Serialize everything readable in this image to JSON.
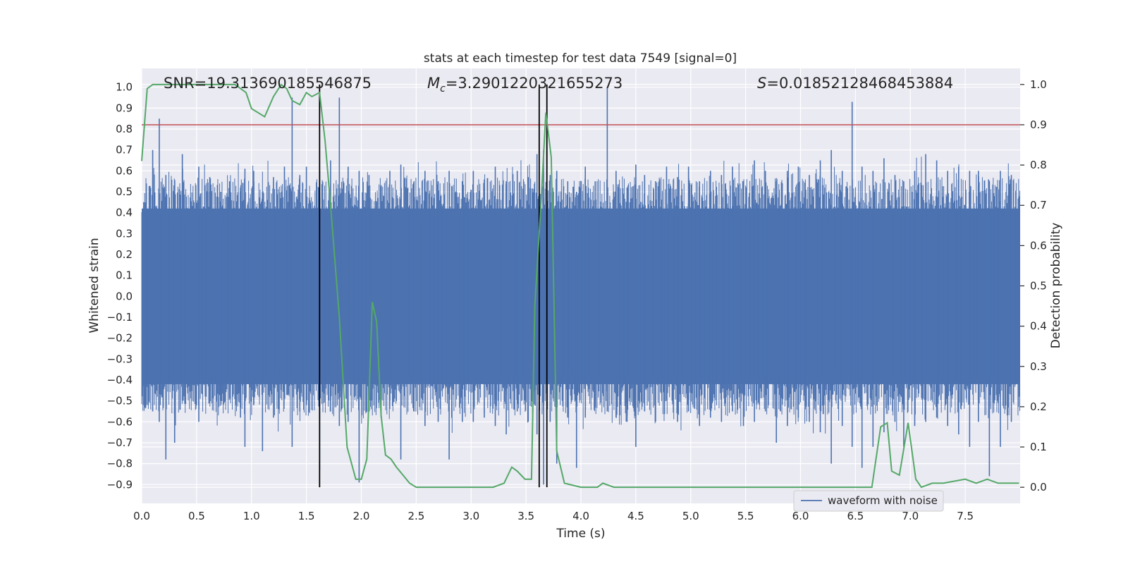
{
  "chart_data": {
    "type": "line",
    "title": "stats at each timestep for test data 7549 [signal=0]",
    "xlabel": "Time (s)",
    "ylabel": "Whitened strain",
    "ylabel_right": "Detection probability",
    "xlim": [
      0.0,
      8.0
    ],
    "ylim": [
      -0.99,
      1.09
    ],
    "ylim_right": [
      -0.04,
      1.04
    ],
    "x_ticks": [
      "0.0",
      "0.5",
      "1.0",
      "1.5",
      "2.0",
      "2.5",
      "3.0",
      "3.5",
      "4.0",
      "4.5",
      "5.0",
      "5.5",
      "6.0",
      "6.5",
      "7.0",
      "7.5"
    ],
    "y_ticks": [
      "−0.9",
      "−0.8",
      "−0.7",
      "−0.6",
      "−0.5",
      "−0.4",
      "−0.3",
      "−0.2",
      "−0.1",
      "0.0",
      "0.1",
      "0.2",
      "0.3",
      "0.4",
      "0.5",
      "0.6",
      "0.7",
      "0.8",
      "0.9",
      "1.0"
    ],
    "y_ticks_right": [
      "0.0",
      "0.1",
      "0.2",
      "0.3",
      "0.4",
      "0.5",
      "0.6",
      "0.7",
      "0.8",
      "0.9",
      "1.0"
    ],
    "grid": true,
    "legend_position": "lower-right",
    "annotations": {
      "snr": "SNR=19.313690185546875",
      "mc_symbol": "M",
      "mc_sub": "c",
      "mc_value": "=3.2901220321655273",
      "s_symbol": "S",
      "s_value": "=0.01852128468453884"
    },
    "threshold": {
      "value": 0.9,
      "axis": "right",
      "color": "#c44e52"
    },
    "vlines": [
      1.62,
      3.62,
      3.69
    ],
    "waveform": {
      "name": "waveform with noise",
      "color": "#4c72b0",
      "core_half_amplitude": 0.42,
      "spikes": [
        {
          "t": 0.02,
          "top": 0.45,
          "bottom": -0.52
        },
        {
          "t": 0.1,
          "top": 0.7,
          "bottom": -0.55
        },
        {
          "t": 0.16,
          "top": 0.85,
          "bottom": -0.6
        },
        {
          "t": 0.22,
          "top": 0.58,
          "bottom": -0.78
        },
        {
          "t": 0.3,
          "top": 0.5,
          "bottom": -0.7
        },
        {
          "t": 0.37,
          "top": 0.68,
          "bottom": -0.5
        },
        {
          "t": 0.52,
          "top": 0.62,
          "bottom": -0.6
        },
        {
          "t": 0.62,
          "top": 0.57,
          "bottom": -0.45
        },
        {
          "t": 0.72,
          "top": 0.5,
          "bottom": -0.5
        },
        {
          "t": 0.8,
          "top": 0.55,
          "bottom": -0.48
        },
        {
          "t": 0.9,
          "top": 0.52,
          "bottom": -0.58
        },
        {
          "t": 0.94,
          "top": 0.61,
          "bottom": -0.72
        },
        {
          "t": 1.02,
          "top": 0.6,
          "bottom": -0.52
        },
        {
          "t": 1.1,
          "top": 0.5,
          "bottom": -0.74
        },
        {
          "t": 1.2,
          "top": 0.57,
          "bottom": -0.58
        },
        {
          "t": 1.3,
          "top": 0.62,
          "bottom": -0.48
        },
        {
          "t": 1.37,
          "top": 0.95,
          "bottom": -0.72
        },
        {
          "t": 1.44,
          "top": 0.58,
          "bottom": -0.55
        },
        {
          "t": 1.5,
          "top": 0.62,
          "bottom": -0.52
        },
        {
          "t": 1.62,
          "top": 0.6,
          "bottom": -0.83
        },
        {
          "t": 1.72,
          "top": 0.65,
          "bottom": -0.5
        },
        {
          "t": 1.8,
          "top": 0.95,
          "bottom": -0.62
        },
        {
          "t": 1.88,
          "top": 0.62,
          "bottom": -0.6
        },
        {
          "t": 1.98,
          "top": 0.6,
          "bottom": -0.89
        },
        {
          "t": 2.07,
          "top": 0.58,
          "bottom": -0.55
        },
        {
          "t": 2.18,
          "top": 0.52,
          "bottom": -0.58
        },
        {
          "t": 2.26,
          "top": 0.6,
          "bottom": -0.5
        },
        {
          "t": 2.36,
          "top": 0.63,
          "bottom": -0.78
        },
        {
          "t": 2.48,
          "top": 0.55,
          "bottom": -0.55
        },
        {
          "t": 2.58,
          "top": 0.6,
          "bottom": -0.62
        },
        {
          "t": 2.7,
          "top": 0.55,
          "bottom": -0.6
        },
        {
          "t": 2.8,
          "top": 0.6,
          "bottom": -0.78
        },
        {
          "t": 2.92,
          "top": 0.55,
          "bottom": -0.6
        },
        {
          "t": 3.02,
          "top": 0.6,
          "bottom": -0.6
        },
        {
          "t": 3.12,
          "top": 0.52,
          "bottom": -0.58
        },
        {
          "t": 3.22,
          "top": 0.62,
          "bottom": -0.62
        },
        {
          "t": 3.32,
          "top": 0.55,
          "bottom": -0.66
        },
        {
          "t": 3.42,
          "top": 0.6,
          "bottom": -0.55
        },
        {
          "t": 3.52,
          "top": 0.57,
          "bottom": -0.6
        },
        {
          "t": 3.6,
          "top": 0.68,
          "bottom": -0.66
        },
        {
          "t": 3.66,
          "top": 0.7,
          "bottom": -0.9
        },
        {
          "t": 3.72,
          "top": 0.58,
          "bottom": -0.6
        },
        {
          "t": 3.78,
          "top": 0.6,
          "bottom": -0.8
        },
        {
          "t": 3.88,
          "top": 0.55,
          "bottom": -0.58
        },
        {
          "t": 3.96,
          "top": 0.5,
          "bottom": -0.82
        },
        {
          "t": 4.04,
          "top": 0.62,
          "bottom": -0.58
        },
        {
          "t": 4.13,
          "top": 0.55,
          "bottom": -0.5
        },
        {
          "t": 4.24,
          "top": 1.0,
          "bottom": -0.55
        },
        {
          "t": 4.32,
          "top": 0.6,
          "bottom": -0.58
        },
        {
          "t": 4.42,
          "top": 0.52,
          "bottom": -0.6
        },
        {
          "t": 4.5,
          "top": 0.63,
          "bottom": -0.72
        },
        {
          "t": 4.58,
          "top": 0.58,
          "bottom": -0.55
        },
        {
          "t": 4.68,
          "top": 0.55,
          "bottom": -0.6
        },
        {
          "t": 4.78,
          "top": 0.62,
          "bottom": -0.5
        },
        {
          "t": 4.88,
          "top": 0.57,
          "bottom": -0.6
        },
        {
          "t": 4.98,
          "top": 0.62,
          "bottom": -0.55
        },
        {
          "t": 5.08,
          "top": 0.55,
          "bottom": -0.62
        },
        {
          "t": 5.18,
          "top": 0.6,
          "bottom": -0.58
        },
        {
          "t": 5.28,
          "top": 0.58,
          "bottom": -0.6
        },
        {
          "t": 5.38,
          "top": 0.62,
          "bottom": -0.55
        },
        {
          "t": 5.48,
          "top": 0.55,
          "bottom": -0.62
        },
        {
          "t": 5.58,
          "top": 0.65,
          "bottom": -0.6
        },
        {
          "t": 5.68,
          "top": 0.6,
          "bottom": -0.55
        },
        {
          "t": 5.78,
          "top": 0.55,
          "bottom": -0.7
        },
        {
          "t": 5.88,
          "top": 0.6,
          "bottom": -0.62
        },
        {
          "t": 5.98,
          "top": 0.62,
          "bottom": -0.58
        },
        {
          "t": 6.08,
          "top": 0.58,
          "bottom": -0.6
        },
        {
          "t": 6.18,
          "top": 0.65,
          "bottom": -0.65
        },
        {
          "t": 6.28,
          "top": 0.7,
          "bottom": -0.8
        },
        {
          "t": 6.38,
          "top": 0.6,
          "bottom": -0.62
        },
        {
          "t": 6.47,
          "top": 0.93,
          "bottom": -0.72
        },
        {
          "t": 6.56,
          "top": 0.62,
          "bottom": -0.82
        },
        {
          "t": 6.66,
          "top": 0.6,
          "bottom": -0.72
        },
        {
          "t": 6.76,
          "top": 0.66,
          "bottom": -0.65
        },
        {
          "t": 6.86,
          "top": 0.58,
          "bottom": -0.6
        },
        {
          "t": 6.94,
          "top": 0.55,
          "bottom": -0.72
        },
        {
          "t": 7.04,
          "top": 0.6,
          "bottom": -0.62
        },
        {
          "t": 7.14,
          "top": 0.68,
          "bottom": -0.6
        },
        {
          "t": 7.24,
          "top": 0.65,
          "bottom": -0.58
        },
        {
          "t": 7.34,
          "top": 0.6,
          "bottom": -0.62
        },
        {
          "t": 7.44,
          "top": 0.62,
          "bottom": -0.66
        },
        {
          "t": 7.54,
          "top": 0.6,
          "bottom": -0.72
        },
        {
          "t": 7.62,
          "top": 0.6,
          "bottom": -0.6
        },
        {
          "t": 7.72,
          "top": 0.55,
          "bottom": -0.86
        },
        {
          "t": 7.82,
          "top": 0.6,
          "bottom": -0.72
        },
        {
          "t": 7.92,
          "top": 0.58,
          "bottom": -0.6
        }
      ]
    },
    "probability": {
      "color": "#55a868",
      "t": [
        0.0,
        0.05,
        0.1,
        0.2,
        0.3,
        0.4,
        0.5,
        0.6,
        0.7,
        0.8,
        0.85,
        0.9,
        0.95,
        1.0,
        1.12,
        1.2,
        1.27,
        1.32,
        1.37,
        1.44,
        1.5,
        1.55,
        1.62,
        1.67,
        1.72,
        1.8,
        1.87,
        1.95,
        2.0,
        2.05,
        2.1,
        2.14,
        2.18,
        2.22,
        2.27,
        2.32,
        2.38,
        2.44,
        2.5,
        2.6,
        2.8,
        3.0,
        3.2,
        3.3,
        3.37,
        3.42,
        3.49,
        3.55,
        3.58,
        3.64,
        3.68,
        3.73,
        3.78,
        3.85,
        4.0,
        4.15,
        4.2,
        4.3,
        4.5,
        5.0,
        5.5,
        5.7,
        5.8,
        6.0,
        6.3,
        6.6,
        6.65,
        6.73,
        6.79,
        6.83,
        6.9,
        6.98,
        7.05,
        7.1,
        7.2,
        7.3,
        7.5,
        7.6,
        7.7,
        7.8,
        7.99
      ],
      "p": [
        0.81,
        0.99,
        1.0,
        1.0,
        1.0,
        1.0,
        1.0,
        1.0,
        1.0,
        1.0,
        1.0,
        0.99,
        0.98,
        0.94,
        0.92,
        0.97,
        1.0,
        0.99,
        0.96,
        0.95,
        0.98,
        0.97,
        0.98,
        0.86,
        0.7,
        0.42,
        0.1,
        0.02,
        0.02,
        0.07,
        0.46,
        0.41,
        0.18,
        0.08,
        0.07,
        0.05,
        0.03,
        0.01,
        0.0,
        0.0,
        0.0,
        0.0,
        0.0,
        0.01,
        0.05,
        0.04,
        0.02,
        0.02,
        0.45,
        0.72,
        0.93,
        0.82,
        0.09,
        0.01,
        0.0,
        0.0,
        0.01,
        0.0,
        0.0,
        0.0,
        0.0,
        0.0,
        0.0,
        0.0,
        0.0,
        0.0,
        0.0,
        0.15,
        0.16,
        0.04,
        0.03,
        0.16,
        0.02,
        0.0,
        0.01,
        0.01,
        0.02,
        0.01,
        0.02,
        0.01,
        0.01
      ]
    }
  }
}
